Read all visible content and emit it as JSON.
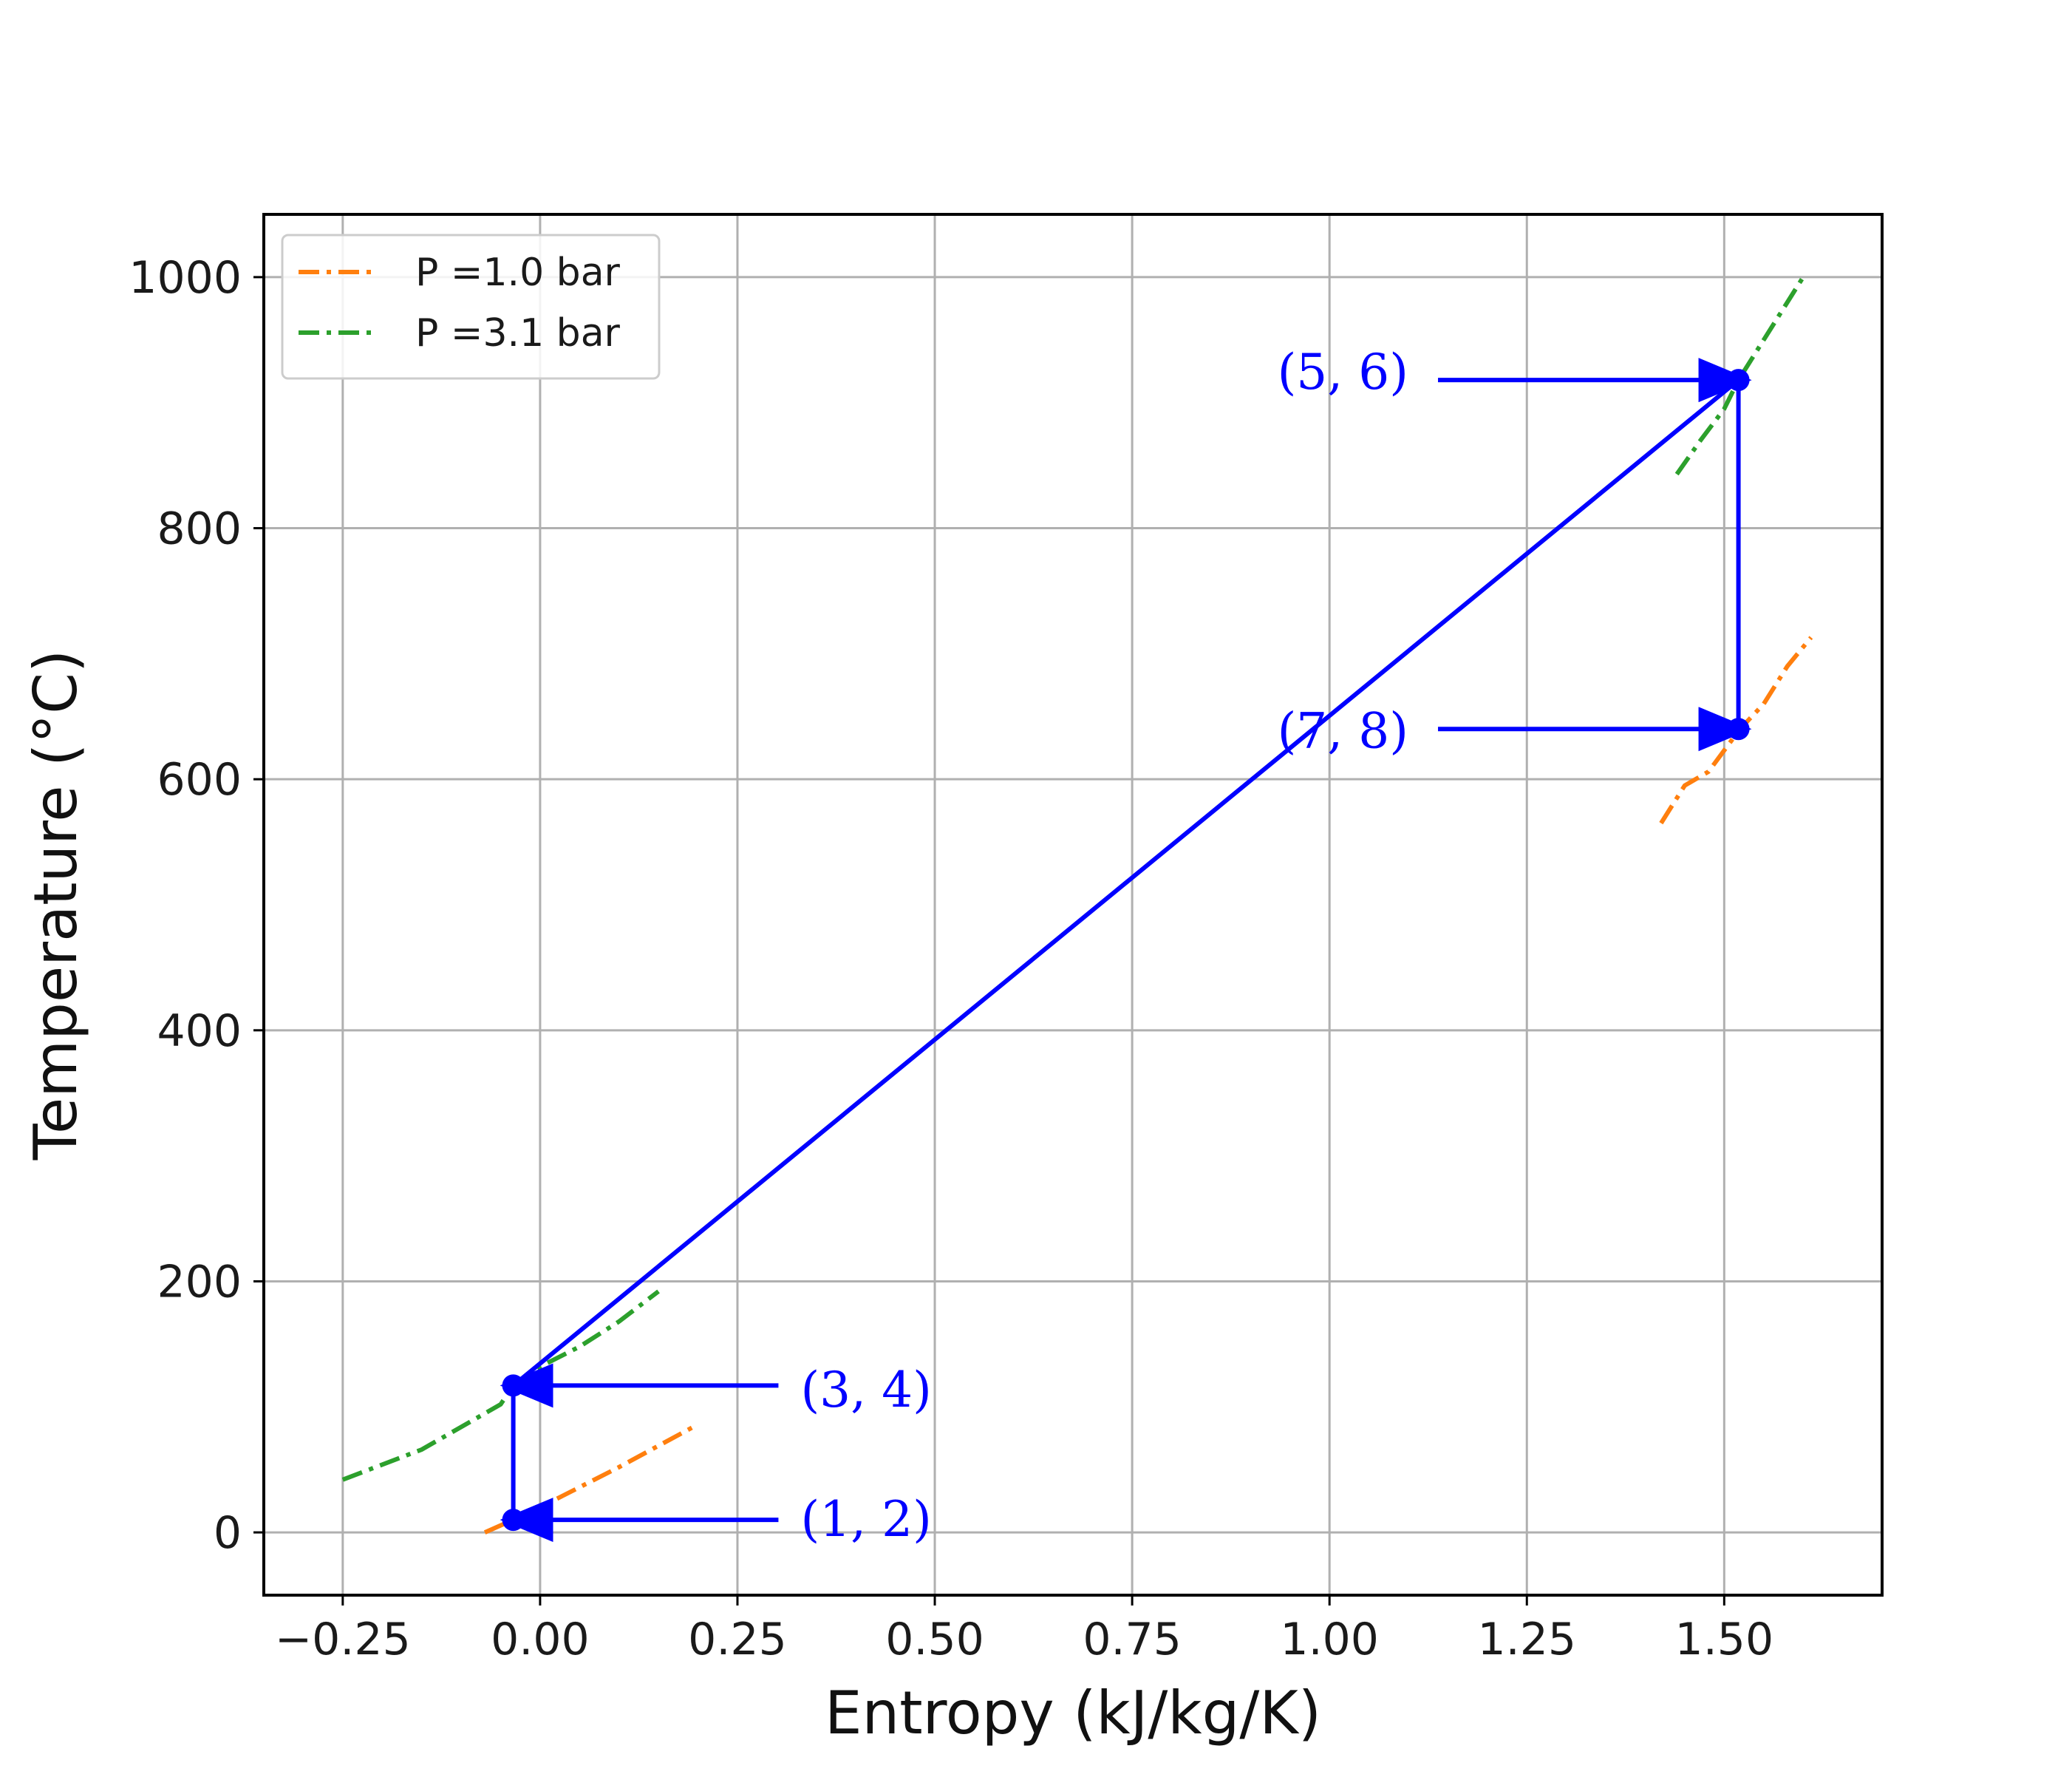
{
  "chart_data": {
    "type": "line",
    "title": "",
    "xlabel": "Entropy (kJ/kg/K)",
    "ylabel": "Temperature (°C)",
    "xlim": [
      -0.35,
      1.7
    ],
    "ylim": [
      -50,
      1050
    ],
    "grid": true,
    "legend_position": "top-left",
    "x_ticks": [
      {
        "value": -0.25,
        "label": "−0.25"
      },
      {
        "value": 0.0,
        "label": "0.00"
      },
      {
        "value": 0.25,
        "label": "0.25"
      },
      {
        "value": 0.5,
        "label": "0.50"
      },
      {
        "value": 0.75,
        "label": "0.75"
      },
      {
        "value": 1.0,
        "label": "1.00"
      },
      {
        "value": 1.25,
        "label": "1.25"
      },
      {
        "value": 1.5,
        "label": "1.50"
      }
    ],
    "y_ticks": [
      {
        "value": 0,
        "label": "0"
      },
      {
        "value": 200,
        "label": "200"
      },
      {
        "value": 400,
        "label": "400"
      },
      {
        "value": 600,
        "label": "600"
      },
      {
        "value": 800,
        "label": "800"
      },
      {
        "value": 1000,
        "label": "1000"
      }
    ],
    "series": [
      {
        "name": "P =1.0 bar",
        "color": "#ff7f0e",
        "style": "dashdot",
        "segments": [
          {
            "x": [
              -0.07,
              -0.034,
              0.0,
              0.05,
              0.1,
              0.15,
              0.2
            ],
            "y": [
              0,
              10,
              20,
              36,
              52,
              69,
              86
            ]
          },
          {
            "x": [
              1.42,
              1.45,
              1.48,
              1.52,
              1.55,
              1.58,
              1.61
            ],
            "y": [
              565,
              595,
              606,
              640,
              660,
              690,
              713
            ]
          }
        ]
      },
      {
        "name": "P =3.1 bar",
        "color": "#2ca02c",
        "style": "dashdot",
        "segments": [
          {
            "x": [
              -0.25,
              -0.15,
              -0.05,
              -0.034,
              0.0,
              0.05,
              0.1,
              0.15
            ],
            "y": [
              42,
              66,
              102,
              117,
              132,
              148,
              168,
              192
            ]
          },
          {
            "x": [
              1.44,
              1.47,
              1.5,
              1.518,
              1.55,
              1.6
            ],
            "y": [
              843,
              870,
              895,
              918,
              950,
              1000
            ]
          }
        ]
      },
      {
        "name": "",
        "color": "#0000ff",
        "style": "solid",
        "points": [
          {
            "x": -0.034,
            "y": 10
          },
          {
            "x": -0.034,
            "y": 117
          },
          {
            "x": 1.518,
            "y": 918
          },
          {
            "x": 1.518,
            "y": 640
          }
        ]
      }
    ],
    "annotations": [
      {
        "text": "(1, 2)",
        "x": -0.034,
        "y": 10,
        "text_x": 0.33,
        "text_y": 10,
        "side": "right"
      },
      {
        "text": "(3, 4)",
        "x": -0.034,
        "y": 117,
        "text_x": 0.33,
        "text_y": 113,
        "side": "right"
      },
      {
        "text": "(5, 6)",
        "x": 1.518,
        "y": 918,
        "text_x": 1.1,
        "text_y": 924,
        "side": "left"
      },
      {
        "text": "(7, 8)",
        "x": 1.518,
        "y": 640,
        "text_x": 1.1,
        "text_y": 638,
        "side": "left"
      }
    ]
  }
}
